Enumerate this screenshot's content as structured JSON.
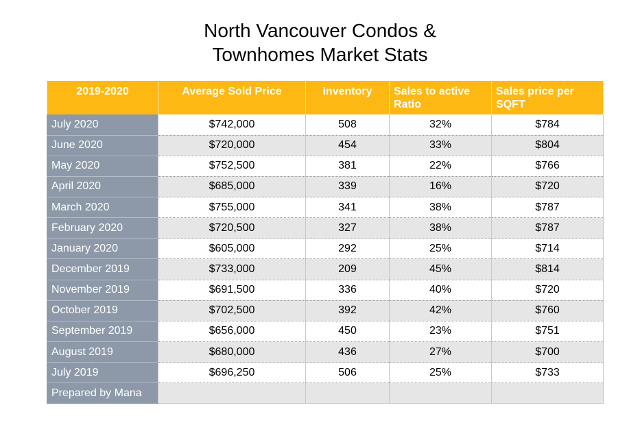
{
  "title": {
    "line1": "North Vancouver Condos &",
    "line2": "Townhomes Market Stats"
  },
  "table": {
    "headers": {
      "period": "2019-2020",
      "avg_price": "Average Sold Price",
      "inventory": "Inventory",
      "ratio_line1": "Sales to active",
      "ratio_line2": "Ratio",
      "sqft_line1": "Sales price per",
      "sqft_line2": "SQFT"
    },
    "rows": [
      {
        "period": "July 2020",
        "avg_price": "$742,000",
        "inventory": "508",
        "ratio": "32%",
        "sqft": "$784"
      },
      {
        "period": "June 2020",
        "avg_price": "$720,000",
        "inventory": "454",
        "ratio": "33%",
        "sqft": "$804"
      },
      {
        "period": "May 2020",
        "avg_price": "$752,500",
        "inventory": "381",
        "ratio": "22%",
        "sqft": "$766"
      },
      {
        "period": "April 2020",
        "avg_price": "$685,000",
        "inventory": "339",
        "ratio": "16%",
        "sqft": "$720"
      },
      {
        "period": "March 2020",
        "avg_price": "$755,000",
        "inventory": "341",
        "ratio": "38%",
        "sqft": "$787"
      },
      {
        "period": "February 2020",
        "avg_price": "$720,500",
        "inventory": "327",
        "ratio": "38%",
        "sqft": "$787"
      },
      {
        "period": "January 2020",
        "avg_price": "$605,000",
        "inventory": "292",
        "ratio": "25%",
        "sqft": "$714"
      },
      {
        "period": "December 2019",
        "avg_price": "$733,000",
        "inventory": "209",
        "ratio": "45%",
        "sqft": "$814"
      },
      {
        "period": "November 2019",
        "avg_price": "$691,500",
        "inventory": "336",
        "ratio": "40%",
        "sqft": "$720"
      },
      {
        "period": "October 2019",
        "avg_price": "$702,500",
        "inventory": "392",
        "ratio": "42%",
        "sqft": "$760"
      },
      {
        "period": "September 2019",
        "avg_price": "$656,000",
        "inventory": "450",
        "ratio": "23%",
        "sqft": "$751"
      },
      {
        "period": "August 2019",
        "avg_price": "$680,000",
        "inventory": "436",
        "ratio": "27%",
        "sqft": "$700"
      },
      {
        "period": "July 2019",
        "avg_price": "$696,250",
        "inventory": "506",
        "ratio": "25%",
        "sqft": "$733"
      }
    ],
    "footer": {
      "label": "Prepared by Mana"
    }
  },
  "colors": {
    "header_bg": "#fdb813",
    "label_column_bg": "#8d99a8",
    "row_alt_bg": "#e6e6e6"
  }
}
